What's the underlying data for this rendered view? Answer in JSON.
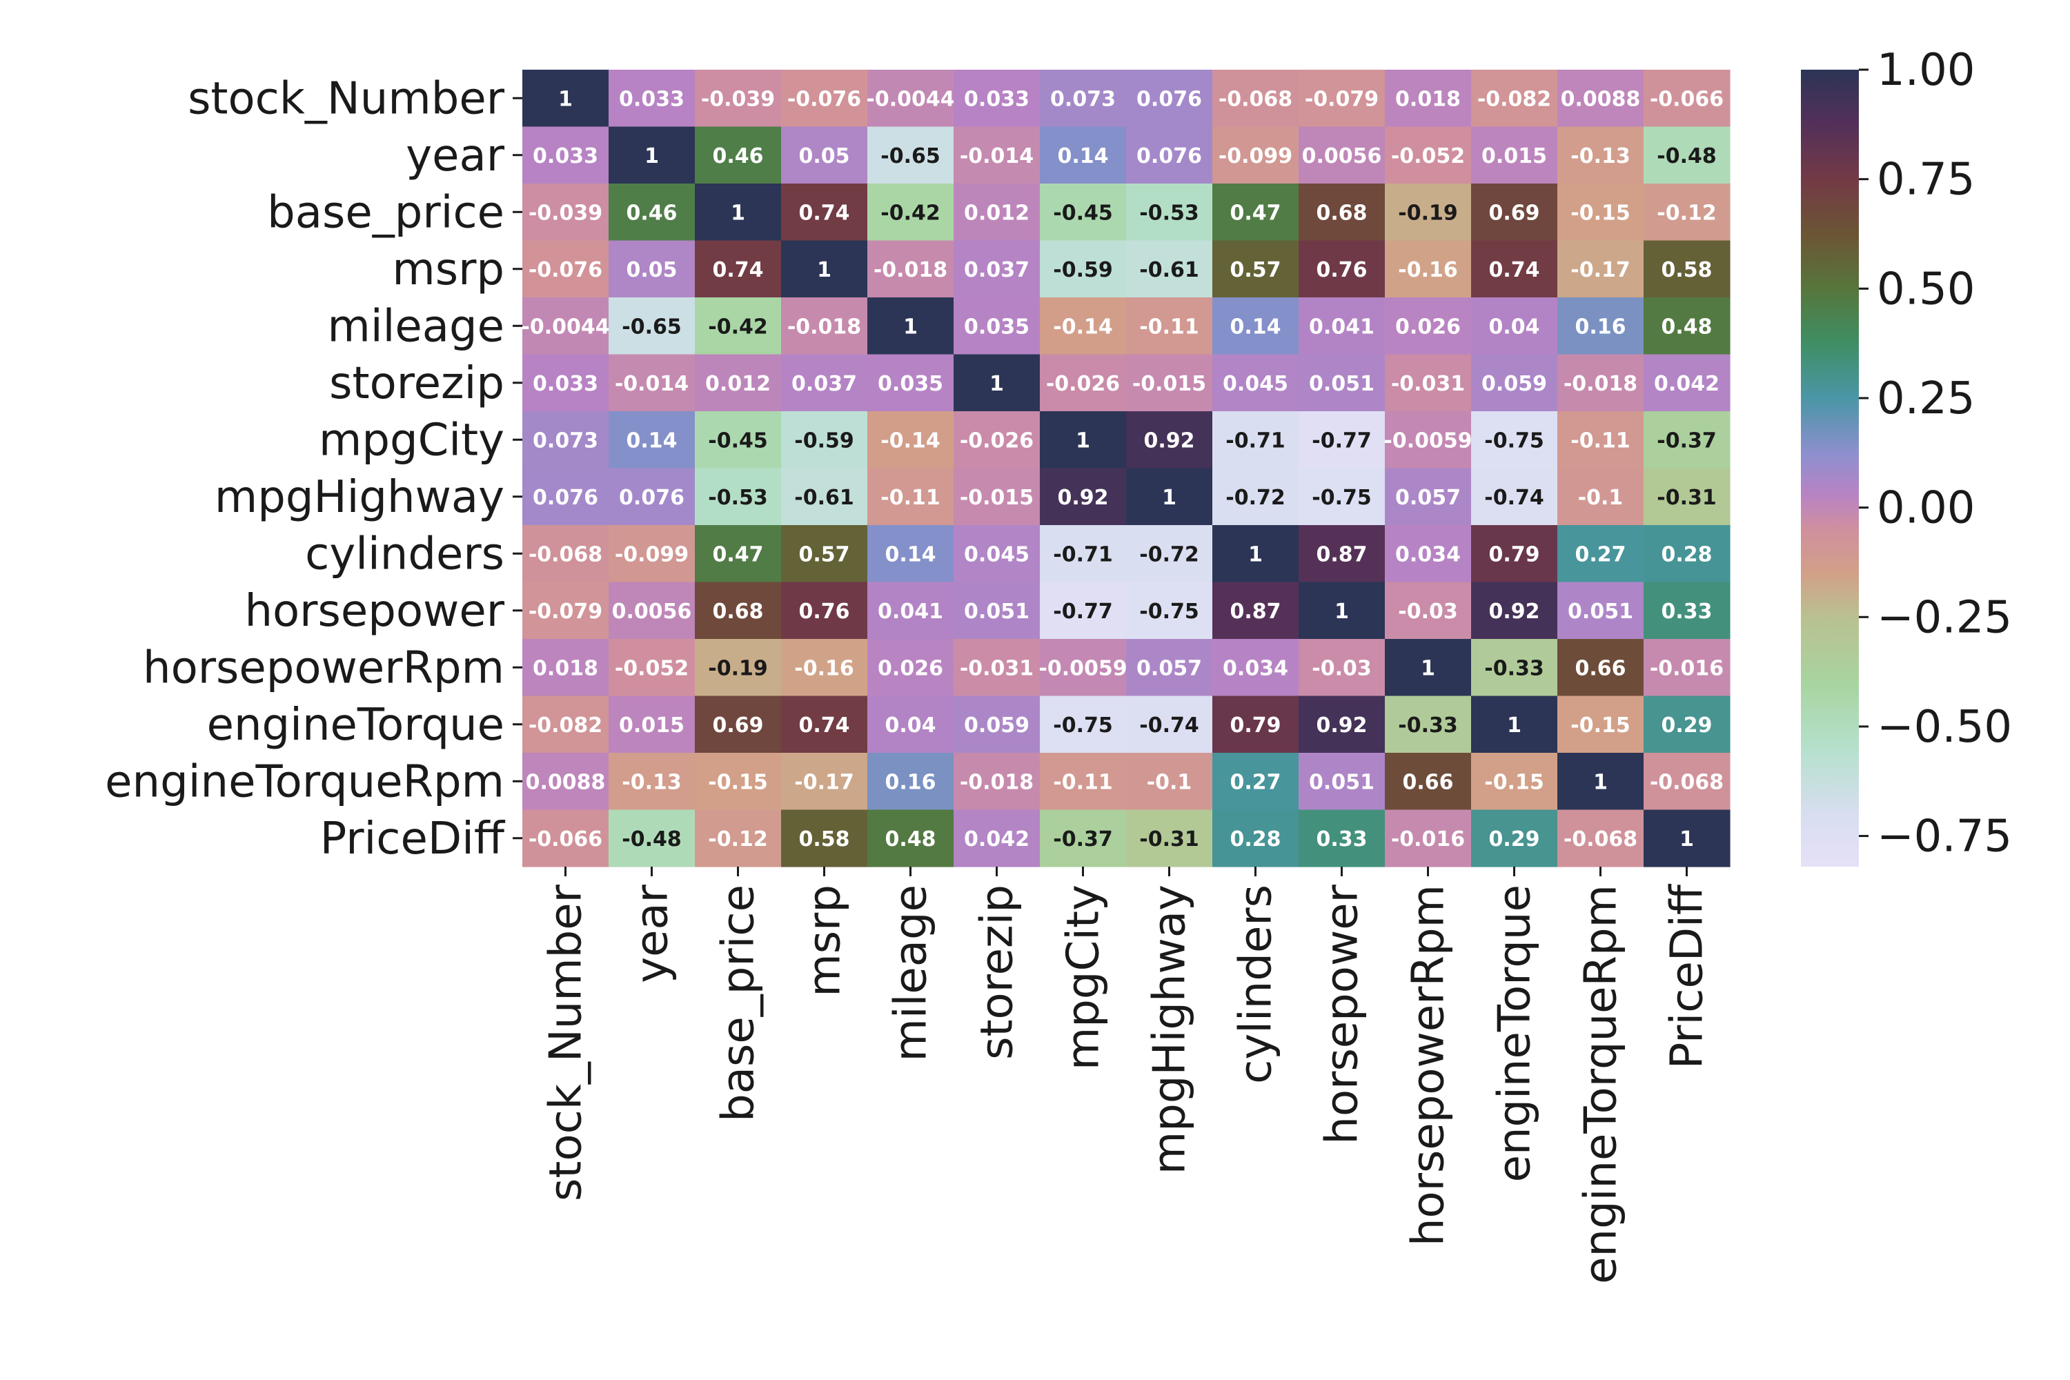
{
  "chart_data": {
    "type": "heatmap",
    "title": "",
    "xlabel": "",
    "ylabel": "",
    "labels": [
      "stock_Number",
      "year",
      "base_price",
      "msrp",
      "mileage",
      "storezip",
      "mpgCity",
      "mpgHighway",
      "cylinders",
      "horsepower",
      "horsepowerRpm",
      "engineTorque",
      "engineTorqueRpm",
      "PriceDiff"
    ],
    "values": [
      [
        1,
        0.033,
        -0.039,
        -0.076,
        -0.0044,
        0.033,
        0.073,
        0.076,
        -0.068,
        -0.079,
        0.018,
        -0.082,
        0.0088,
        -0.066
      ],
      [
        0.033,
        1,
        0.46,
        0.05,
        -0.65,
        -0.014,
        0.14,
        0.076,
        -0.099,
        0.0056,
        -0.052,
        0.015,
        -0.13,
        -0.48
      ],
      [
        -0.039,
        0.46,
        1,
        0.74,
        -0.42,
        0.012,
        -0.45,
        -0.53,
        0.47,
        0.68,
        -0.19,
        0.69,
        -0.15,
        -0.12
      ],
      [
        -0.076,
        0.05,
        0.74,
        1,
        -0.018,
        0.037,
        -0.59,
        -0.61,
        0.57,
        0.76,
        -0.16,
        0.74,
        -0.17,
        0.58
      ],
      [
        -0.0044,
        -0.65,
        -0.42,
        -0.018,
        1,
        0.035,
        -0.14,
        -0.11,
        0.14,
        0.041,
        0.026,
        0.04,
        0.16,
        0.48
      ],
      [
        0.033,
        -0.014,
        0.012,
        0.037,
        0.035,
        1,
        -0.026,
        -0.015,
        0.045,
        0.051,
        -0.031,
        0.059,
        -0.018,
        0.042
      ],
      [
        0.073,
        0.14,
        -0.45,
        -0.59,
        -0.14,
        -0.026,
        1,
        0.92,
        -0.71,
        -0.77,
        -0.0059,
        -0.75,
        -0.11,
        -0.37
      ],
      [
        0.076,
        0.076,
        -0.53,
        -0.61,
        -0.11,
        -0.015,
        0.92,
        1,
        -0.72,
        -0.75,
        0.057,
        -0.74,
        -0.1,
        -0.31
      ],
      [
        -0.068,
        -0.099,
        0.47,
        0.57,
        0.14,
        0.045,
        -0.71,
        -0.72,
        1,
        0.87,
        0.034,
        0.79,
        0.27,
        0.28
      ],
      [
        -0.079,
        0.0056,
        0.68,
        0.76,
        0.041,
        0.051,
        -0.77,
        -0.75,
        0.87,
        1,
        -0.03,
        0.92,
        0.051,
        0.33
      ],
      [
        0.018,
        -0.052,
        -0.19,
        -0.16,
        0.026,
        -0.031,
        -0.0059,
        0.057,
        0.034,
        -0.03,
        1,
        -0.33,
        0.66,
        -0.016
      ],
      [
        -0.082,
        0.015,
        0.69,
        0.74,
        0.04,
        0.059,
        -0.75,
        -0.74,
        0.79,
        0.92,
        -0.33,
        1,
        -0.15,
        0.29
      ],
      [
        0.0088,
        -0.13,
        -0.15,
        -0.17,
        0.16,
        -0.018,
        -0.11,
        -0.1,
        0.27,
        0.051,
        0.66,
        -0.15,
        1,
        -0.068
      ],
      [
        -0.066,
        -0.48,
        -0.12,
        0.58,
        0.48,
        0.042,
        -0.37,
        -0.31,
        0.28,
        0.33,
        -0.016,
        0.29,
        -0.068,
        1
      ]
    ],
    "cell_labels": [
      [
        "1",
        "0.033",
        "-0.039",
        "-0.076",
        "-0.0044",
        "0.033",
        "0.073",
        "0.076",
        "-0.068",
        "-0.079",
        "0.018",
        "-0.082",
        "0.0088",
        "-0.066"
      ],
      [
        "0.033",
        "1",
        "0.46",
        "0.05",
        "-0.65",
        "-0.014",
        "0.14",
        "0.076",
        "-0.099",
        "0.0056",
        "-0.052",
        "0.015",
        "-0.13",
        "-0.48"
      ],
      [
        "-0.039",
        "0.46",
        "1",
        "0.74",
        "-0.42",
        "0.012",
        "-0.45",
        "-0.53",
        "0.47",
        "0.68",
        "-0.19",
        "0.69",
        "-0.15",
        "-0.12"
      ],
      [
        "-0.076",
        "0.05",
        "0.74",
        "1",
        "-0.018",
        "0.037",
        "-0.59",
        "-0.61",
        "0.57",
        "0.76",
        "-0.16",
        "0.74",
        "-0.17",
        "0.58"
      ],
      [
        "-0.0044",
        "-0.65",
        "-0.42",
        "-0.018",
        "1",
        "0.035",
        "-0.14",
        "-0.11",
        "0.14",
        "0.041",
        "0.026",
        "0.04",
        "0.16",
        "0.48"
      ],
      [
        "0.033",
        "-0.014",
        "0.012",
        "0.037",
        "0.035",
        "1",
        "-0.026",
        "-0.015",
        "0.045",
        "0.051",
        "-0.031",
        "0.059",
        "-0.018",
        "0.042"
      ],
      [
        "0.073",
        "0.14",
        "-0.45",
        "-0.59",
        "-0.14",
        "-0.026",
        "1",
        "0.92",
        "-0.71",
        "-0.77",
        "-0.0059",
        "-0.75",
        "-0.11",
        "-0.37"
      ],
      [
        "0.076",
        "0.076",
        "-0.53",
        "-0.61",
        "-0.11",
        "-0.015",
        "0.92",
        "1",
        "-0.72",
        "-0.75",
        "0.057",
        "-0.74",
        "-0.1",
        "-0.31"
      ],
      [
        "-0.068",
        "-0.099",
        "0.47",
        "0.57",
        "0.14",
        "0.045",
        "-0.71",
        "-0.72",
        "1",
        "0.87",
        "0.034",
        "0.79",
        "0.27",
        "0.28"
      ],
      [
        "-0.079",
        "0.0056",
        "0.68",
        "0.76",
        "0.041",
        "0.051",
        "-0.77",
        "-0.75",
        "0.87",
        "1",
        "-0.03",
        "0.92",
        "0.051",
        "0.33"
      ],
      [
        "0.018",
        "-0.052",
        "-0.19",
        "-0.16",
        "0.026",
        "-0.031",
        "-0.0059",
        "0.057",
        "0.034",
        "-0.03",
        "1",
        "-0.33",
        "0.66",
        "-0.016"
      ],
      [
        "-0.082",
        "0.015",
        "0.69",
        "0.74",
        "0.04",
        "0.059",
        "-0.75",
        "-0.74",
        "0.79",
        "0.92",
        "-0.33",
        "1",
        "-0.15",
        "0.29"
      ],
      [
        "0.0088",
        "-0.13",
        "-0.15",
        "-0.17",
        "0.16",
        "-0.018",
        "-0.11",
        "-0.1",
        "0.27",
        "0.051",
        "0.66",
        "-0.15",
        "1",
        "-0.068"
      ],
      [
        "-0.066",
        "-0.48",
        "-0.12",
        "0.58",
        "0.48",
        "0.042",
        "-0.37",
        "-0.31",
        "0.28",
        "0.33",
        "-0.016",
        "0.29",
        "-0.068",
        "1"
      ]
    ],
    "colorbar": {
      "range": [
        -0.82,
        1.0
      ],
      "ticks": [
        1.0,
        0.75,
        0.5,
        0.25,
        0.0,
        -0.25,
        -0.5,
        -0.75
      ],
      "tick_labels": [
        "1.00",
        "0.75",
        "0.50",
        "0.25",
        "0.00",
        "−0.25",
        "−0.50",
        "−0.75"
      ],
      "colormap": "tab20b-like",
      "stops": [
        {
          "v": -0.82,
          "color": "#e5e0f7"
        },
        {
          "v": -0.7,
          "color": "#d8def0"
        },
        {
          "v": -0.55,
          "color": "#b5e0cc"
        },
        {
          "v": -0.4,
          "color": "#a8d4a0"
        },
        {
          "v": -0.25,
          "color": "#b9c190"
        },
        {
          "v": -0.15,
          "color": "#d2a088"
        },
        {
          "v": -0.05,
          "color": "#d08f9e"
        },
        {
          "v": 0.03,
          "color": "#b883c4"
        },
        {
          "v": 0.12,
          "color": "#8f8fcf"
        },
        {
          "v": 0.25,
          "color": "#4a96a6"
        },
        {
          "v": 0.38,
          "color": "#3f8e62"
        },
        {
          "v": 0.5,
          "color": "#57763c"
        },
        {
          "v": 0.62,
          "color": "#6b5634"
        },
        {
          "v": 0.75,
          "color": "#733a46"
        },
        {
          "v": 0.88,
          "color": "#52305a"
        },
        {
          "v": 1.0,
          "color": "#2c3555"
        }
      ]
    },
    "grid": false
  }
}
